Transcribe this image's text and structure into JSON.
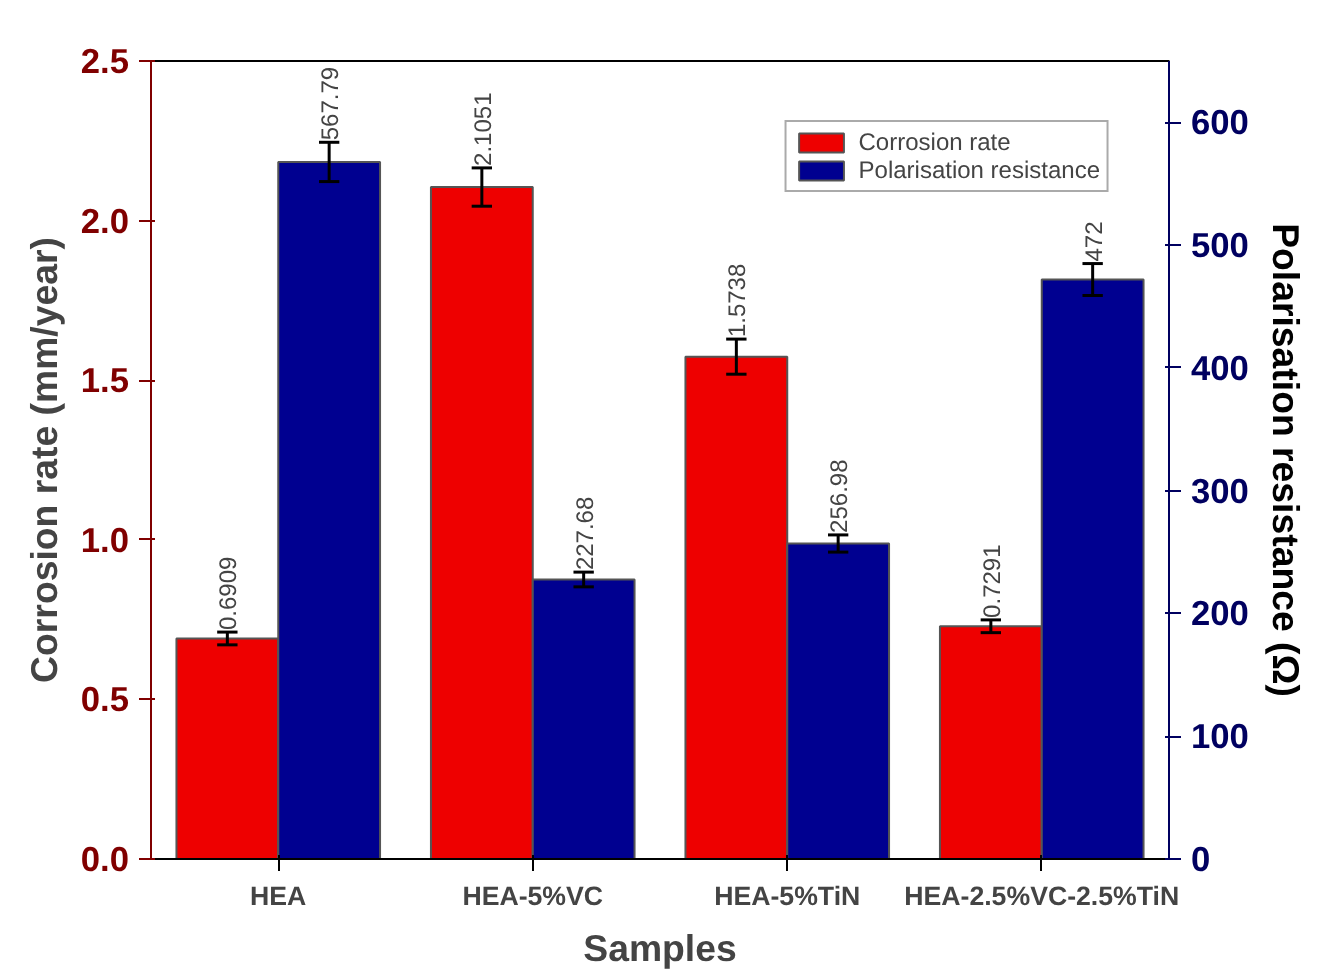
{
  "chart_data": {
    "type": "bar",
    "xlabel": "Samples",
    "ylabel": "Corrosion rate (mm/year)",
    "y2label": "Polarisation resistance (Ω)",
    "categories": [
      "HEA",
      "HEA-5%VC",
      "HEA-5%TiN",
      "HEA-2.5%VC-2.5%TiN"
    ],
    "series": [
      {
        "name": "Corrosion rate",
        "color": "#ee0000",
        "values": [
          0.6909,
          2.1051,
          1.5738,
          0.7291
        ],
        "errors": [
          0.02,
          0.06,
          0.055,
          0.02
        ]
      },
      {
        "name": "Polarisation resistance",
        "color": "#000090",
        "values": [
          567.79,
          227.68,
          256.98,
          472
        ],
        "errors": [
          16,
          6,
          7,
          13
        ],
        "axis": "y2"
      }
    ],
    "data_labels": true,
    "ylim": [
      0,
      2.5
    ],
    "yticks": [
      {
        "value": 0,
        "label": "0.0"
      },
      0.5,
      {
        "value": 1,
        "label": "1.0"
      },
      1.5,
      {
        "value": 2,
        "label": "2.0"
      },
      2.5
    ],
    "y2lim": [
      0,
      650
    ],
    "y2ticks": [
      0,
      100,
      200,
      300,
      400,
      500,
      600
    ],
    "legend": "top right",
    "grid": false
  }
}
